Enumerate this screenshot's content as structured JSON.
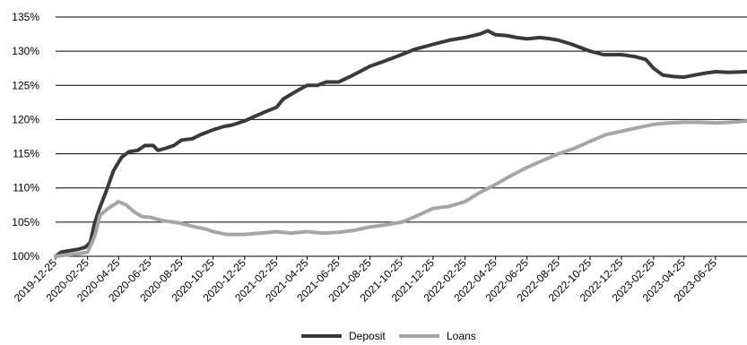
{
  "chart_data": {
    "type": "line",
    "title": "",
    "xlabel": "",
    "ylabel": "",
    "ylim": [
      100,
      135
    ],
    "y_ticks": [
      "100%",
      "105%",
      "110%",
      "115%",
      "120%",
      "125%",
      "130%",
      "135%"
    ],
    "x_range": [
      "2019-12-25",
      "2023-08-25"
    ],
    "x_ticks": [
      "2019-12-25",
      "2020-02-25",
      "2020-04-25",
      "2020-06-25",
      "2020-08-25",
      "2020-10-25",
      "2020-12-25",
      "2021-02-25",
      "2021-04-25",
      "2021-06-25",
      "2021-08-25",
      "2021-10-25",
      "2021-12-25",
      "2022-02-25",
      "2022-04-25",
      "2022-06-25",
      "2022-08-25",
      "2022-10-25",
      "2022-12-25",
      "2023-02-25",
      "2023-04-25",
      "2023-06-25"
    ],
    "grid": "horizontal",
    "legend_position": "bottom",
    "series": [
      {
        "name": "Deposit",
        "color": "#3a3a3a",
        "points": [
          [
            "2019-12-25",
            100.0
          ],
          [
            "2020-01-05",
            100.6
          ],
          [
            "2020-01-20",
            100.8
          ],
          [
            "2020-02-05",
            101.0
          ],
          [
            "2020-02-20",
            101.3
          ],
          [
            "2020-03-01",
            102.0
          ],
          [
            "2020-03-10",
            105.0
          ],
          [
            "2020-03-20",
            107.2
          ],
          [
            "2020-04-01",
            109.5
          ],
          [
            "2020-04-15",
            112.5
          ],
          [
            "2020-05-01",
            114.5
          ],
          [
            "2020-05-15",
            115.3
          ],
          [
            "2020-06-01",
            115.5
          ],
          [
            "2020-06-15",
            116.2
          ],
          [
            "2020-07-01",
            116.2
          ],
          [
            "2020-07-10",
            115.5
          ],
          [
            "2020-07-25",
            115.8
          ],
          [
            "2020-08-10",
            116.2
          ],
          [
            "2020-08-25",
            117.0
          ],
          [
            "2020-09-15",
            117.2
          ],
          [
            "2020-10-01",
            117.8
          ],
          [
            "2020-10-25",
            118.5
          ],
          [
            "2020-11-15",
            119.0
          ],
          [
            "2020-12-01",
            119.2
          ],
          [
            "2020-12-25",
            119.8
          ],
          [
            "2021-01-15",
            120.5
          ],
          [
            "2021-02-05",
            121.2
          ],
          [
            "2021-02-25",
            121.8
          ],
          [
            "2021-03-10",
            123.0
          ],
          [
            "2021-04-01",
            124.0
          ],
          [
            "2021-04-25",
            125.0
          ],
          [
            "2021-05-15",
            125.0
          ],
          [
            "2021-06-01",
            125.5
          ],
          [
            "2021-06-25",
            125.5
          ],
          [
            "2021-07-15",
            126.2
          ],
          [
            "2021-08-05",
            127.0
          ],
          [
            "2021-08-25",
            127.8
          ],
          [
            "2021-09-20",
            128.5
          ],
          [
            "2021-10-25",
            129.5
          ],
          [
            "2021-11-20",
            130.3
          ],
          [
            "2021-12-25",
            131.0
          ],
          [
            "2022-01-25",
            131.6
          ],
          [
            "2022-02-25",
            132.0
          ],
          [
            "2022-03-25",
            132.5
          ],
          [
            "2022-04-10",
            133.0
          ],
          [
            "2022-04-25",
            132.4
          ],
          [
            "2022-05-15",
            132.3
          ],
          [
            "2022-06-05",
            132.0
          ],
          [
            "2022-06-25",
            131.8
          ],
          [
            "2022-07-20",
            132.0
          ],
          [
            "2022-08-10",
            131.8
          ],
          [
            "2022-08-25",
            131.6
          ],
          [
            "2022-09-20",
            131.0
          ],
          [
            "2022-10-25",
            130.0
          ],
          [
            "2022-11-20",
            129.5
          ],
          [
            "2022-12-25",
            129.5
          ],
          [
            "2023-01-20",
            129.2
          ],
          [
            "2023-02-10",
            128.8
          ],
          [
            "2023-02-25",
            127.5
          ],
          [
            "2023-03-15",
            126.5
          ],
          [
            "2023-04-05",
            126.3
          ],
          [
            "2023-04-25",
            126.2
          ],
          [
            "2023-05-15",
            126.5
          ],
          [
            "2023-06-05",
            126.8
          ],
          [
            "2023-06-25",
            127.0
          ],
          [
            "2023-07-20",
            126.9
          ],
          [
            "2023-08-25",
            127.0
          ]
        ]
      },
      {
        "name": "Loans",
        "color": "#a6a6a6",
        "points": [
          [
            "2019-12-25",
            100.0
          ],
          [
            "2020-01-15",
            100.2
          ],
          [
            "2020-02-10",
            100.4
          ],
          [
            "2020-02-25",
            100.6
          ],
          [
            "2020-03-10",
            103.0
          ],
          [
            "2020-03-20",
            106.0
          ],
          [
            "2020-04-05",
            107.0
          ],
          [
            "2020-04-15",
            107.5
          ],
          [
            "2020-04-25",
            108.0
          ],
          [
            "2020-05-10",
            107.5
          ],
          [
            "2020-05-25",
            106.5
          ],
          [
            "2020-06-10",
            105.8
          ],
          [
            "2020-06-25",
            105.7
          ],
          [
            "2020-07-20",
            105.2
          ],
          [
            "2020-08-10",
            105.0
          ],
          [
            "2020-08-25",
            104.8
          ],
          [
            "2020-09-20",
            104.3
          ],
          [
            "2020-10-10",
            104.0
          ],
          [
            "2020-10-25",
            103.6
          ],
          [
            "2020-11-20",
            103.2
          ],
          [
            "2020-12-25",
            103.2
          ],
          [
            "2021-01-25",
            103.4
          ],
          [
            "2021-02-25",
            103.6
          ],
          [
            "2021-03-25",
            103.4
          ],
          [
            "2021-04-25",
            103.6
          ],
          [
            "2021-05-25",
            103.4
          ],
          [
            "2021-06-25",
            103.5
          ],
          [
            "2021-07-25",
            103.8
          ],
          [
            "2021-08-25",
            104.3
          ],
          [
            "2021-09-25",
            104.6
          ],
          [
            "2021-10-25",
            105.0
          ],
          [
            "2021-11-20",
            105.8
          ],
          [
            "2021-12-25",
            107.0
          ],
          [
            "2022-01-25",
            107.3
          ],
          [
            "2022-02-25",
            108.0
          ],
          [
            "2022-03-25",
            109.3
          ],
          [
            "2022-04-25",
            110.5
          ],
          [
            "2022-05-25",
            111.8
          ],
          [
            "2022-06-25",
            113.0
          ],
          [
            "2022-07-25",
            114.0
          ],
          [
            "2022-08-25",
            115.0
          ],
          [
            "2022-09-25",
            115.8
          ],
          [
            "2022-10-25",
            116.8
          ],
          [
            "2022-11-25",
            117.8
          ],
          [
            "2022-12-25",
            118.3
          ],
          [
            "2023-01-25",
            118.8
          ],
          [
            "2023-02-25",
            119.3
          ],
          [
            "2023-03-25",
            119.5
          ],
          [
            "2023-04-25",
            119.6
          ],
          [
            "2023-05-25",
            119.6
          ],
          [
            "2023-06-25",
            119.5
          ],
          [
            "2023-07-25",
            119.6
          ],
          [
            "2023-08-25",
            119.8
          ]
        ]
      }
    ]
  }
}
